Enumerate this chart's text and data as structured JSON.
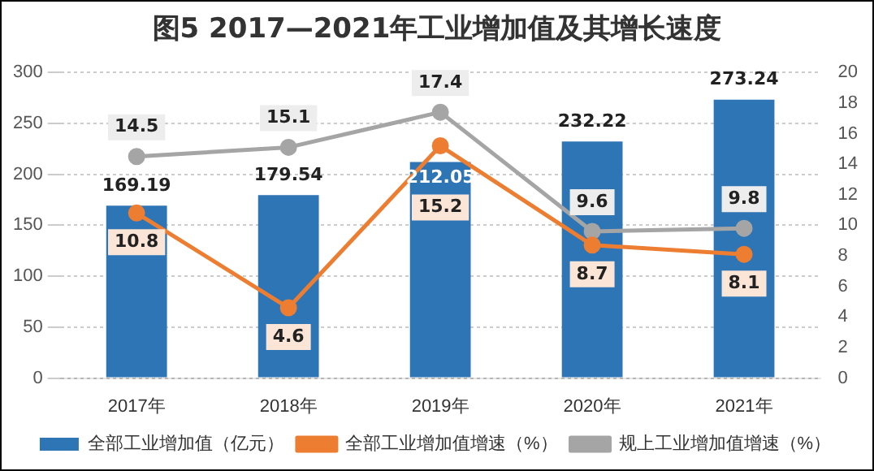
{
  "chart_data": {
    "type": "bar",
    "title": "图5 2017—2021年工业增加值及其增长速度",
    "categories": [
      "2017年",
      "2018年",
      "2019年",
      "2020年",
      "2021年"
    ],
    "series": [
      {
        "name": "全部工业增加值（亿元）",
        "color": "#2e75b6",
        "values": [
          169.19,
          179.54,
          212.05,
          232.22,
          273.24
        ]
      },
      {
        "name": "全部工业增加值增速（%）",
        "type": "line",
        "axis": "y2",
        "color": "#ed7d31",
        "values": [
          10.8,
          4.6,
          15.2,
          8.7,
          8.1
        ]
      },
      {
        "name": "规上工业增加值增速（%）",
        "type": "line",
        "axis": "y2",
        "color": "#a5a5a5",
        "values": [
          14.5,
          15.1,
          17.4,
          9.6,
          9.8
        ]
      }
    ],
    "ylim": [
      0,
      300
    ],
    "yticks": [
      0,
      50,
      100,
      150,
      200,
      250,
      300
    ],
    "y2lim": [
      0,
      20
    ],
    "y2ticks": [
      0,
      2,
      4,
      6,
      8,
      10,
      12,
      14,
      16,
      18,
      20
    ],
    "grid": "y",
    "legend": "bottom",
    "marker": "circle",
    "line_style": "solid",
    "data_labels": true
  }
}
